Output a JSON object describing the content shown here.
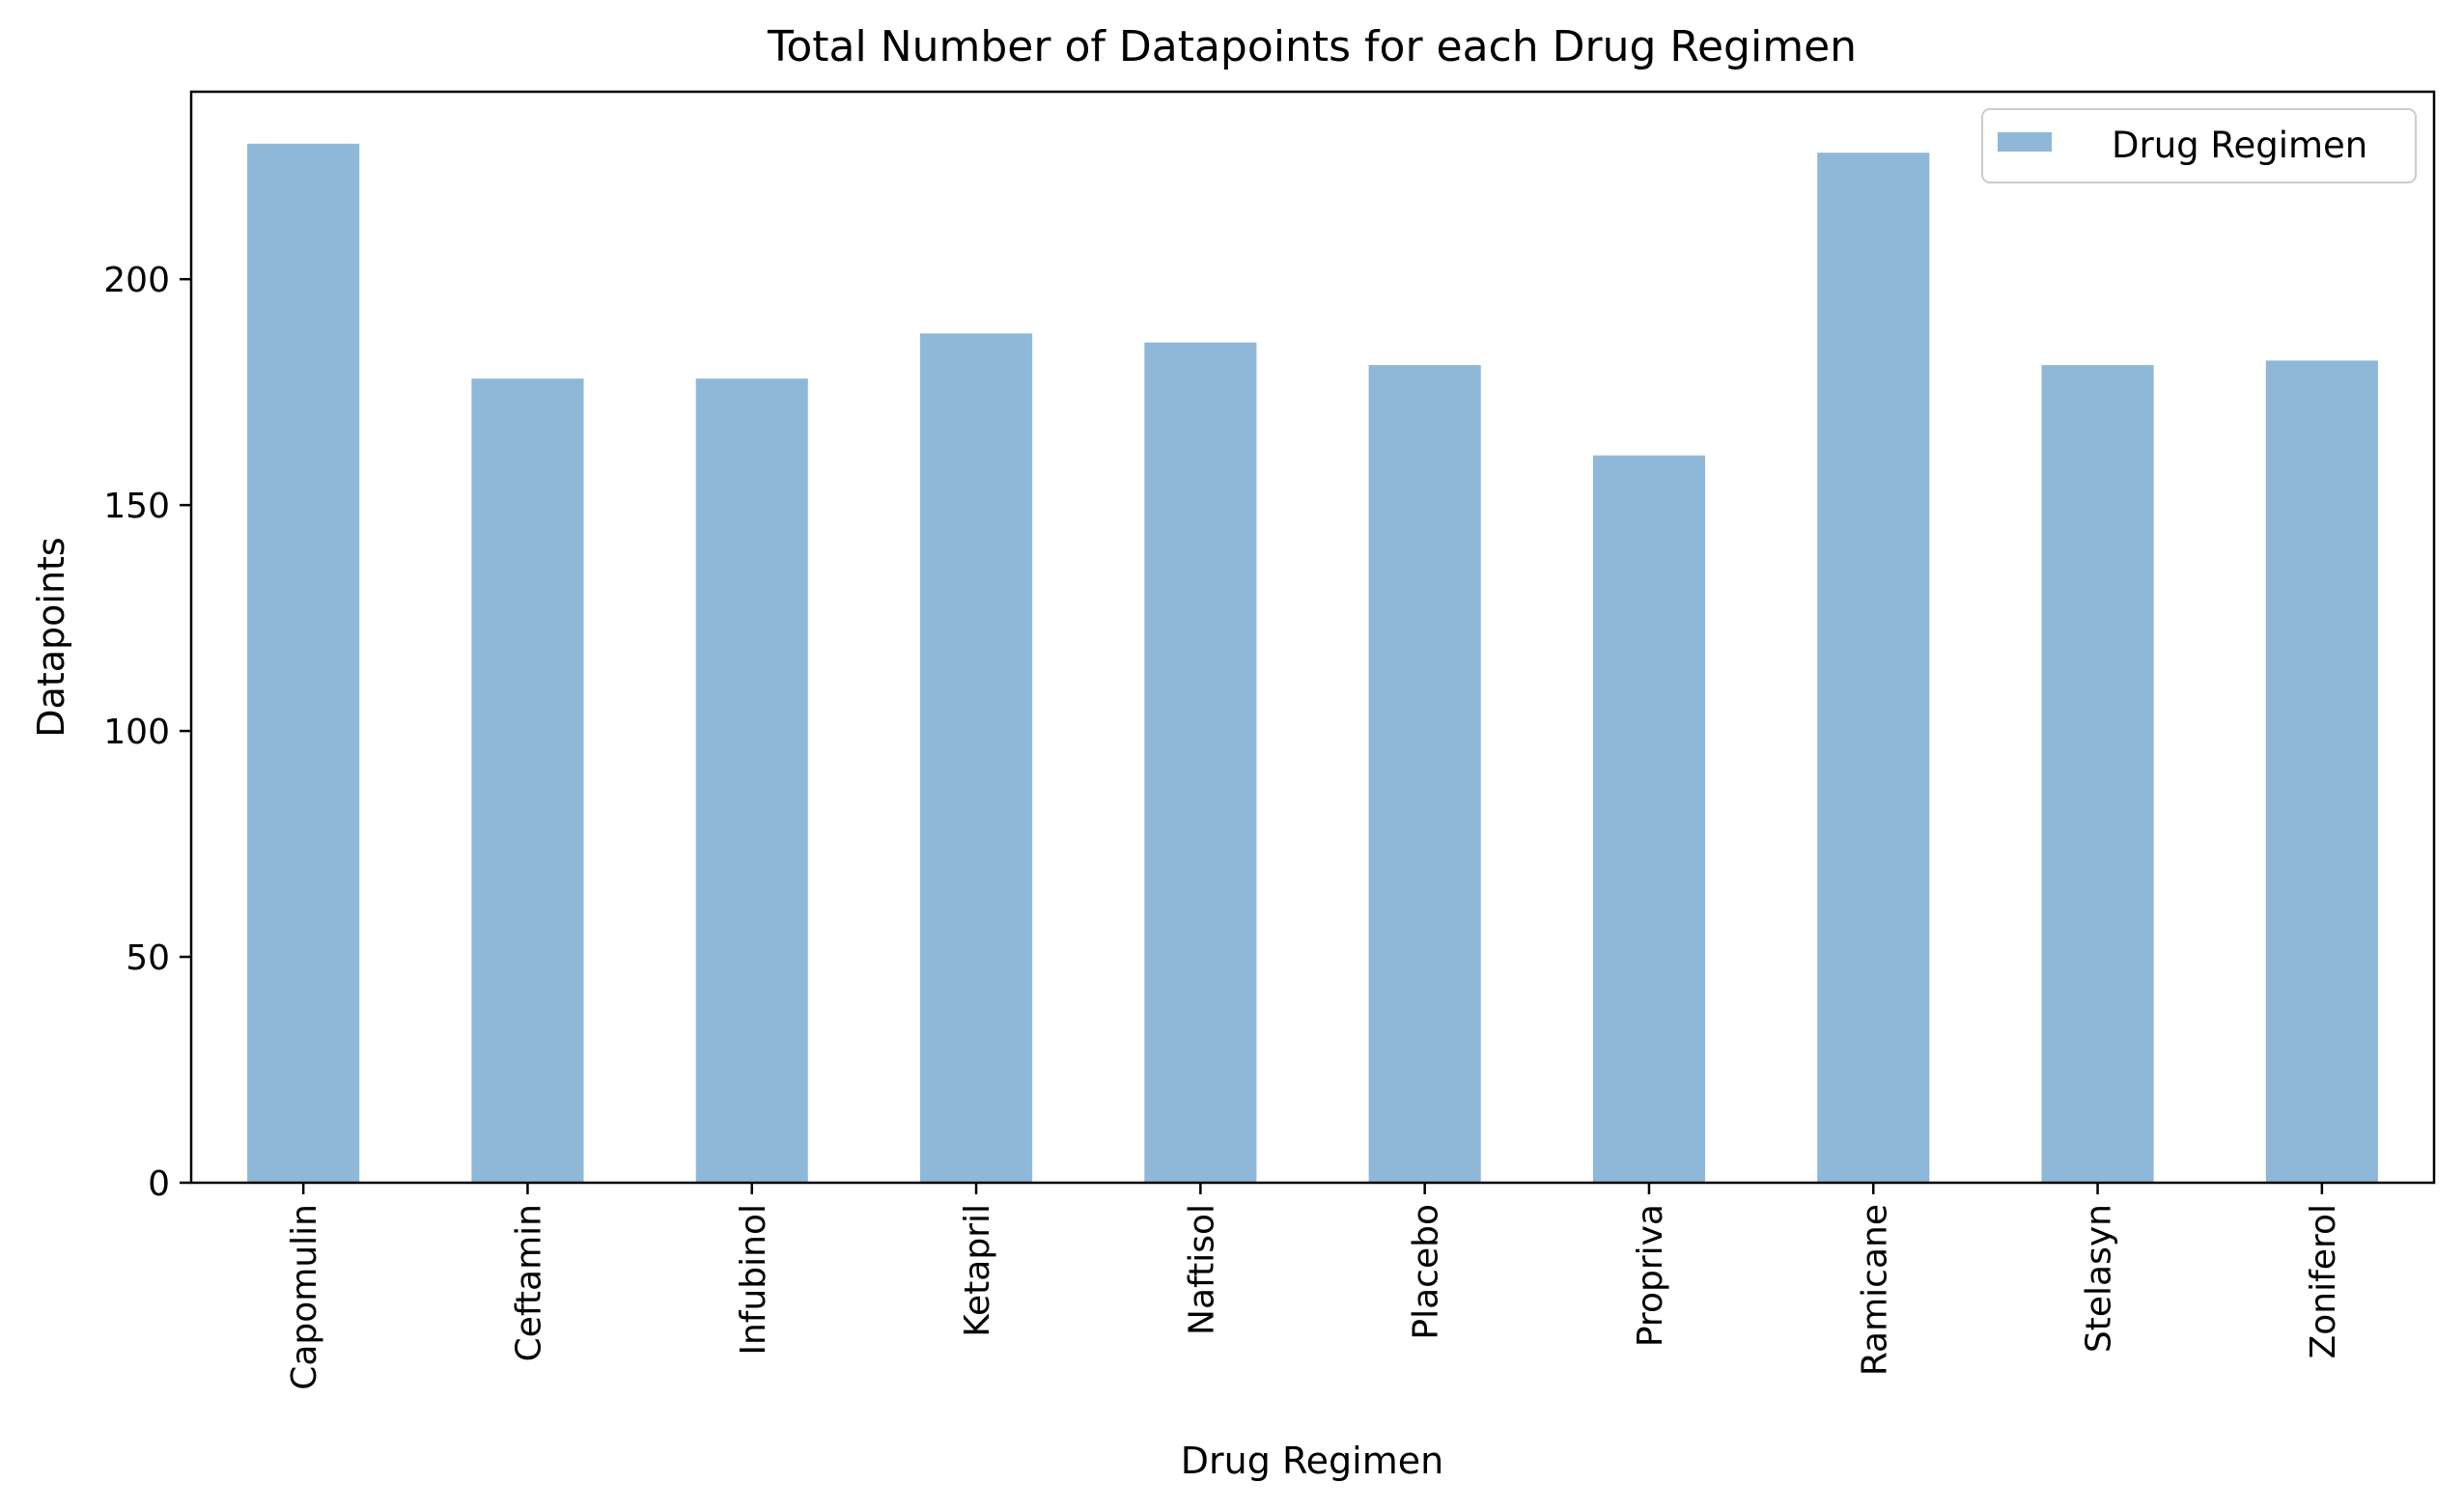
{
  "chart_data": {
    "type": "bar",
    "title": "Total Number of Datapoints for each Drug Regimen",
    "xlabel": "Drug Regimen",
    "ylabel": "Datapoints",
    "categories": [
      "Capomulin",
      "Ceftamin",
      "Infubinol",
      "Ketapril",
      "Naftisol",
      "Placebo",
      "Propriva",
      "Ramicane",
      "Stelasyn",
      "Zoniferol"
    ],
    "series": [
      {
        "name": "Drug Regimen",
        "values": [
          230,
          178,
          178,
          188,
          186,
          181,
          161,
          228,
          181,
          182
        ],
        "color": "#8fb8d8"
      }
    ],
    "ylim": [
      0,
      241.5
    ],
    "yticks": [
      0,
      50,
      100,
      150,
      200
    ],
    "legend": "top-right",
    "grid": false
  }
}
